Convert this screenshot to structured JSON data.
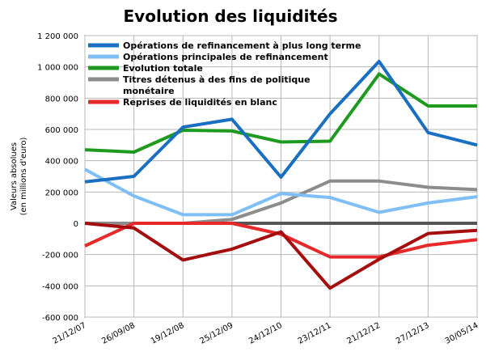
{
  "chart_data": {
    "type": "line",
    "title": "Evolution des liquidités",
    "ylabel_line1": "Valeurs absolues",
    "ylabel_line2": "(en millions d'euro)",
    "xlabel": "",
    "categories": [
      "21/12/07",
      "26/09/08",
      "19/12/08",
      "25/12/09",
      "24/12/10",
      "23/12/11",
      "21/12/12",
      "27/12/13",
      "30/05/14"
    ],
    "ylim": [
      -600000,
      1200000
    ],
    "yticks": [
      -600000,
      -400000,
      -200000,
      0,
      200000,
      400000,
      600000,
      800000,
      1000000,
      1200000
    ],
    "ytick_labels": [
      "-600 000",
      "-400 000",
      "-200 000",
      "0",
      "200 000",
      "400 000",
      "600 000",
      "800 000",
      "1 000 000",
      "1 200 000"
    ],
    "grid": true,
    "legend_position": "top-left",
    "series": [
      {
        "name": "Opérations de refinancement à plus long terme",
        "color": "#1a6fc0",
        "values": [
          265000,
          300000,
          615000,
          665000,
          295000,
          700000,
          1035000,
          580000,
          500000
        ]
      },
      {
        "name": "Opérations principales de refinancement",
        "color": "#7fbff5",
        "values": [
          345000,
          175000,
          55000,
          55000,
          190000,
          165000,
          70000,
          130000,
          170000
        ]
      },
      {
        "name": "Evolution totale",
        "color": "#1e9a1e",
        "values": [
          470000,
          455000,
          595000,
          590000,
          520000,
          525000,
          955000,
          750000,
          750000
        ]
      },
      {
        "name": "Titres détenus à des fins de politique monétaire",
        "legend_lines": [
          "Titres détenus à des fins de politique",
          "monétaire"
        ],
        "color": "#8c8c8c",
        "values": [
          0,
          0,
          0,
          25000,
          130000,
          270000,
          270000,
          230000,
          215000
        ]
      },
      {
        "name": "Reprises de liquidités en blanc",
        "color": "#e62a2a",
        "values": [
          -145000,
          0,
          0,
          0,
          -70000,
          -215000,
          -215000,
          -140000,
          -105000
        ]
      },
      {
        "name": "",
        "color": "#a50e0e",
        "values": [
          0,
          -30000,
          -235000,
          -165000,
          -55000,
          -415000,
          -230000,
          -65000,
          -45000
        ]
      }
    ],
    "zero_line_color": "#555555"
  }
}
